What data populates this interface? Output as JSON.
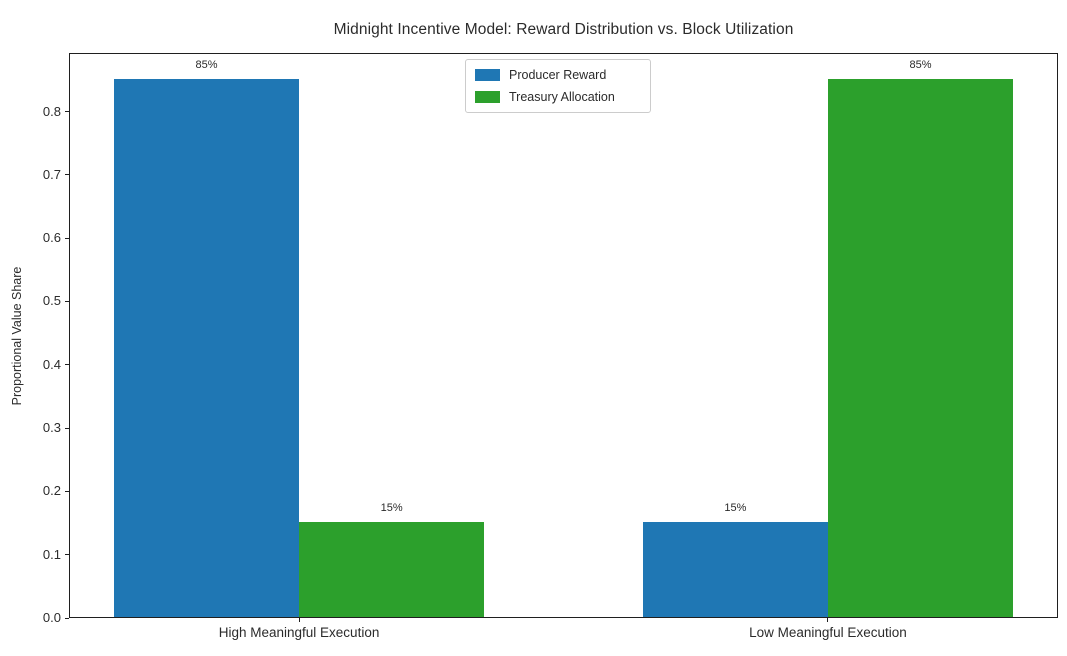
{
  "chart_data": {
    "type": "bar",
    "title": "Midnight Incentive Model: Reward Distribution vs. Block Utilization",
    "xlabel": "",
    "ylabel": "Proportional Value Share",
    "categories": [
      "High Meaningful Execution",
      "Low Meaningful Execution"
    ],
    "series": [
      {
        "name": "Producer Reward",
        "color": "#1f77b4",
        "values": [
          0.85,
          0.15
        ],
        "bar_labels": [
          "85%",
          "15%"
        ]
      },
      {
        "name": "Treasury Allocation",
        "color": "#2ca02c",
        "values": [
          0.15,
          0.85
        ],
        "bar_labels": [
          "15%",
          "85%"
        ]
      }
    ],
    "bar_width": 0.35,
    "ylim": [
      0,
      0.8925
    ],
    "xlim": [
      -0.435,
      1.435
    ],
    "yticks": [
      0,
      0.1,
      0.2,
      0.3,
      0.4,
      0.5,
      0.6,
      0.7,
      0.8
    ],
    "ytick_labels": [
      "0.0",
      "0.1",
      "0.2",
      "0.3",
      "0.4",
      "0.5",
      "0.6",
      "0.7",
      "0.8"
    ],
    "legend": {
      "position": "upper center"
    },
    "grid": false,
    "background": "#ffffff",
    "text_color": "#2b2b2b"
  }
}
